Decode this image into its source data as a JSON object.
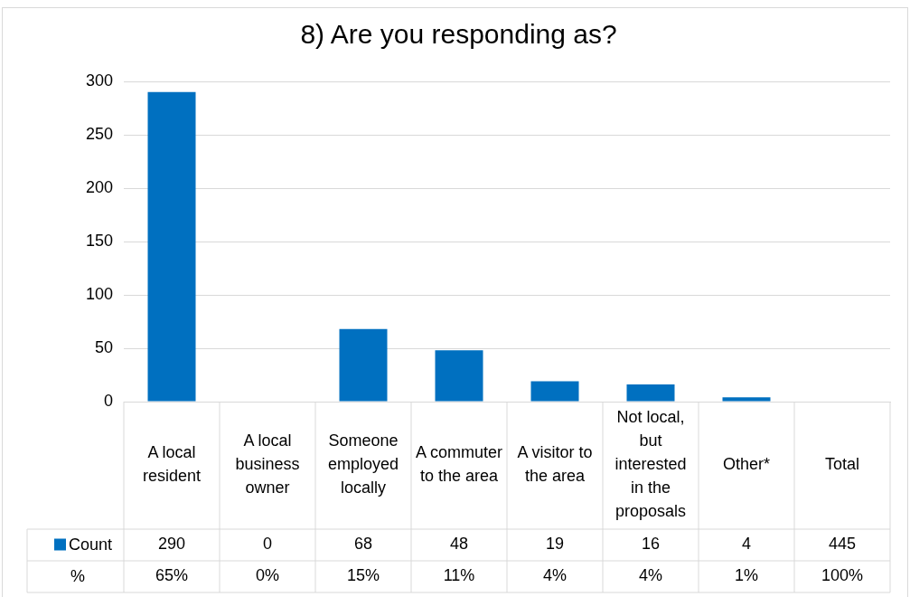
{
  "chart_data": {
    "type": "bar",
    "title": "8) Are you responding as?",
    "categories": [
      "A local resident",
      "A local business owner",
      "Someone employed locally",
      "A commuter to the area",
      "A visitor to the area",
      "Not local, but interested in the proposals",
      "Other*",
      "Total"
    ],
    "series": [
      {
        "name": "Count",
        "color": "#0070c0",
        "values": [
          290,
          0,
          68,
          48,
          19,
          16,
          4,
          null
        ],
        "value_labels": [
          "290",
          "0",
          "68",
          "48",
          "19",
          "16",
          "4",
          "445"
        ]
      },
      {
        "name": "%",
        "values": [
          null,
          null,
          null,
          null,
          null,
          null,
          null,
          null
        ],
        "value_labels": [
          "65%",
          "0%",
          "15%",
          "11%",
          "4%",
          "4%",
          "1%",
          "100%"
        ]
      }
    ],
    "ylim": [
      0,
      300
    ],
    "yticks": [
      0,
      50,
      100,
      150,
      200,
      250,
      300
    ],
    "grid": "y",
    "legend": "bottom"
  }
}
